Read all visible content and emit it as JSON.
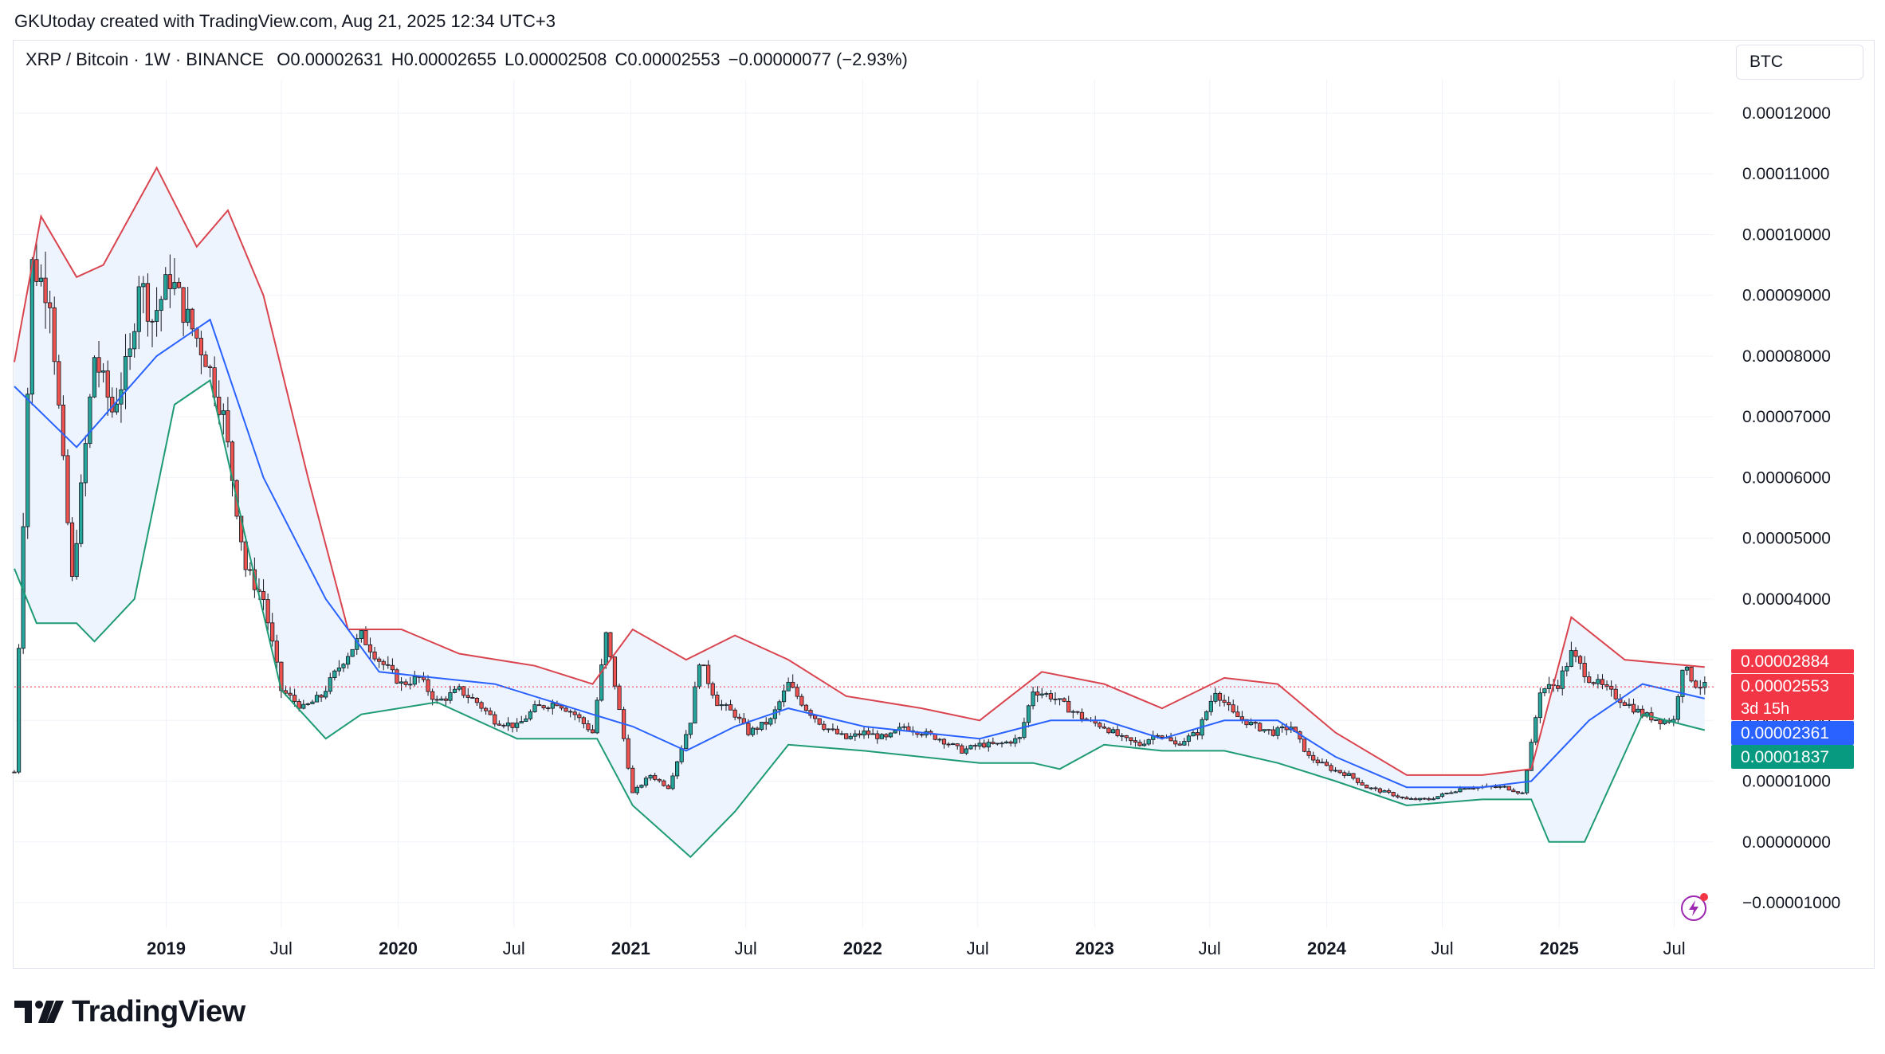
{
  "caption": "GKUtoday created with TradingView.com, Aug 21, 2025 12:34 UTC+3",
  "legend": {
    "symbol": "XRP / Bitcoin · 1W · BINANCE",
    "open": "O0.00002631",
    "high": "H0.00002655",
    "low": "L0.00002508",
    "close": "C0.00002553",
    "change": "−0.00000077 (−2.93%)"
  },
  "currency_button": "BTC",
  "brand": "TradingView",
  "price_tags": {
    "upper": "0.00002884",
    "last": "0.00002553",
    "countdown": "3d 15h",
    "middle": "0.00002361",
    "lower": "0.00001837"
  },
  "colors": {
    "up": "#26a69a",
    "down": "#ef5350",
    "candle": "#131722",
    "upper_band": "#d9444f",
    "middle_band": "#2962ff",
    "lower_band": "#1e9b74",
    "band_fill": "#eef4fd",
    "tag_red": "#f23645",
    "tag_blue": "#2962ff",
    "tag_green": "#089981"
  },
  "chart_data": {
    "type": "candlestick",
    "interval": "1W",
    "indicator": "Bollinger Bands",
    "y_range": [
      -1e-05,
      0.00012
    ],
    "y_ticks": [
      "0.00012000",
      "0.00011000",
      "0.00010000",
      "0.00009000",
      "0.00008000",
      "0.00007000",
      "0.00006000",
      "0.00005000",
      "0.00004000",
      "0.00003000",
      "0.00002000",
      "0.00001000",
      "0.00000000",
      "−0.00001000"
    ],
    "y_tick_values": [
      0.00012,
      0.00011,
      0.0001,
      9e-05,
      8e-05,
      7e-05,
      6e-05,
      5e-05,
      4e-05,
      3e-05,
      2e-05,
      1e-05,
      0,
      -1e-05
    ],
    "x_ticks": [
      {
        "label": "2019",
        "date": "2019-01-01",
        "bold": true
      },
      {
        "label": "Jul",
        "date": "2019-07-01",
        "bold": false
      },
      {
        "label": "2020",
        "date": "2020-01-01",
        "bold": true
      },
      {
        "label": "Jul",
        "date": "2020-07-01",
        "bold": false
      },
      {
        "label": "2021",
        "date": "2021-01-01",
        "bold": true
      },
      {
        "label": "Jul",
        "date": "2021-07-01",
        "bold": false
      },
      {
        "label": "2022",
        "date": "2022-01-01",
        "bold": true
      },
      {
        "label": "Jul",
        "date": "2022-07-01",
        "bold": false
      },
      {
        "label": "2023",
        "date": "2023-01-01",
        "bold": true
      },
      {
        "label": "Jul",
        "date": "2023-07-01",
        "bold": false
      },
      {
        "label": "2024",
        "date": "2024-01-01",
        "bold": true
      },
      {
        "label": "Jul",
        "date": "2024-07-01",
        "bold": false
      },
      {
        "label": "2025",
        "date": "2025-01-01",
        "bold": true
      },
      {
        "label": "Jul",
        "date": "2025-07-01",
        "bold": false
      }
    ],
    "last_price": 2.553e-05,
    "price_series": [
      [
        "2018-05-07",
        1.15e-05
      ],
      [
        "2018-06-04",
        9.5e-05
      ],
      [
        "2018-07-02",
        9e-05
      ],
      [
        "2018-08-06",
        4.3e-05
      ],
      [
        "2018-09-10",
        8e-05
      ],
      [
        "2018-10-08",
        7.1e-05
      ],
      [
        "2018-11-05",
        8e-05
      ],
      [
        "2018-11-19",
        9.3e-05
      ],
      [
        "2018-12-10",
        8.6e-05
      ],
      [
        "2019-01-07",
        9.3e-05
      ],
      [
        "2019-02-04",
        8.6e-05
      ],
      [
        "2019-03-04",
        8e-05
      ],
      [
        "2019-04-01",
        7e-05
      ],
      [
        "2019-05-06",
        4.5e-05
      ],
      [
        "2019-06-03",
        4e-05
      ],
      [
        "2019-07-01",
        2.5e-05
      ],
      [
        "2019-08-05",
        2.2e-05
      ],
      [
        "2019-09-02",
        2.4e-05
      ],
      [
        "2019-10-07",
        3e-05
      ],
      [
        "2019-11-04",
        3.4e-05
      ],
      [
        "2019-12-02",
        3e-05
      ],
      [
        "2020-01-06",
        2.6e-05
      ],
      [
        "2020-02-03",
        2.7e-05
      ],
      [
        "2020-03-02",
        2.3e-05
      ],
      [
        "2020-04-06",
        2.5e-05
      ],
      [
        "2020-05-04",
        2.3e-05
      ],
      [
        "2020-06-01",
        2e-05
      ],
      [
        "2020-07-06",
        1.9e-05
      ],
      [
        "2020-08-03",
        2.2e-05
      ],
      [
        "2020-09-07",
        2.3e-05
      ],
      [
        "2020-10-05",
        2.1e-05
      ],
      [
        "2020-11-02",
        1.8e-05
      ],
      [
        "2020-11-23",
        3.4e-05
      ],
      [
        "2020-12-07",
        2.6e-05
      ],
      [
        "2021-01-04",
        8e-06
      ],
      [
        "2021-02-01",
        1.1e-05
      ],
      [
        "2021-03-01",
        9e-06
      ],
      [
        "2021-04-05",
        2e-05
      ],
      [
        "2021-04-19",
        3e-05
      ],
      [
        "2021-05-17",
        2.3e-05
      ],
      [
        "2021-06-14",
        2.1e-05
      ],
      [
        "2021-07-05",
        1.8e-05
      ],
      [
        "2021-08-09",
        2e-05
      ],
      [
        "2021-09-06",
        2.6e-05
      ],
      [
        "2021-10-04",
        2.2e-05
      ],
      [
        "2021-11-01",
        1.9e-05
      ],
      [
        "2021-12-06",
        1.7e-05
      ],
      [
        "2022-01-03",
        1.8e-05
      ],
      [
        "2022-02-07",
        1.7e-05
      ],
      [
        "2022-03-07",
        1.9e-05
      ],
      [
        "2022-04-04",
        1.8e-05
      ],
      [
        "2022-05-02",
        1.7e-05
      ],
      [
        "2022-06-06",
        1.5e-05
      ],
      [
        "2022-07-04",
        1.6e-05
      ],
      [
        "2022-08-01",
        1.6e-05
      ],
      [
        "2022-09-05",
        1.7e-05
      ],
      [
        "2022-09-26",
        2.5e-05
      ],
      [
        "2022-10-24",
        2.4e-05
      ],
      [
        "2022-11-21",
        2.2e-05
      ],
      [
        "2022-12-19",
        2e-05
      ],
      [
        "2023-01-16",
        1.9e-05
      ],
      [
        "2023-02-13",
        1.7e-05
      ],
      [
        "2023-03-13",
        1.6e-05
      ],
      [
        "2023-04-10",
        1.8e-05
      ],
      [
        "2023-05-08",
        1.6e-05
      ],
      [
        "2023-06-12",
        1.8e-05
      ],
      [
        "2023-07-10",
        2.5e-05
      ],
      [
        "2023-08-07",
        2.1e-05
      ],
      [
        "2023-09-11",
        1.9e-05
      ],
      [
        "2023-10-09",
        1.8e-05
      ],
      [
        "2023-11-06",
        1.9e-05
      ],
      [
        "2023-12-04",
        1.4e-05
      ],
      [
        "2024-01-08",
        1.2e-05
      ],
      [
        "2024-02-05",
        1.1e-05
      ],
      [
        "2024-03-04",
        9e-06
      ],
      [
        "2024-04-08",
        8e-06
      ],
      [
        "2024-05-06",
        7e-06
      ],
      [
        "2024-06-10",
        7e-06
      ],
      [
        "2024-07-08",
        8e-06
      ],
      [
        "2024-08-05",
        9e-06
      ],
      [
        "2024-09-09",
        9e-06
      ],
      [
        "2024-10-07",
        9e-06
      ],
      [
        "2024-11-04",
        8e-06
      ],
      [
        "2024-11-18",
        1.6e-05
      ],
      [
        "2024-12-02",
        2.5e-05
      ],
      [
        "2024-12-30",
        2.6e-05
      ],
      [
        "2025-01-20",
        3.1e-05
      ],
      [
        "2025-02-17",
        2.7e-05
      ],
      [
        "2025-03-17",
        2.5e-05
      ],
      [
        "2025-04-14",
        2.3e-05
      ],
      [
        "2025-05-12",
        2.1e-05
      ],
      [
        "2025-06-09",
        2e-05
      ],
      [
        "2025-06-30",
        2e-05
      ],
      [
        "2025-07-14",
        2.9e-05
      ],
      [
        "2025-08-04",
        2.6e-05
      ],
      [
        "2025-08-18",
        2.553e-05
      ]
    ],
    "bollinger": {
      "upper": [
        [
          "2018-05-07",
          7.9e-05
        ],
        [
          "2018-06-18",
          0.000103
        ],
        [
          "2018-08-13",
          9.3e-05
        ],
        [
          "2018-09-24",
          9.5e-05
        ],
        [
          "2018-12-17",
          0.000111
        ],
        [
          "2019-02-18",
          9.8e-05
        ],
        [
          "2019-04-08",
          0.000104
        ],
        [
          "2019-06-03",
          9e-05
        ],
        [
          "2019-08-12",
          6e-05
        ],
        [
          "2019-10-14",
          3.5e-05
        ],
        [
          "2020-01-06",
          3.5e-05
        ],
        [
          "2020-04-06",
          3.1e-05
        ],
        [
          "2020-08-03",
          2.9e-05
        ],
        [
          "2020-11-02",
          2.6e-05
        ],
        [
          "2021-01-04",
          3.5e-05
        ],
        [
          "2021-03-29",
          3e-05
        ],
        [
          "2021-06-14",
          3.4e-05
        ],
        [
          "2021-09-06",
          3e-05
        ],
        [
          "2021-12-06",
          2.4e-05
        ],
        [
          "2022-04-04",
          2.2e-05
        ],
        [
          "2022-07-04",
          2e-05
        ],
        [
          "2022-10-10",
          2.8e-05
        ],
        [
          "2023-01-16",
          2.6e-05
        ],
        [
          "2023-04-17",
          2.2e-05
        ],
        [
          "2023-07-24",
          2.7e-05
        ],
        [
          "2023-10-16",
          2.6e-05
        ],
        [
          "2024-01-15",
          1.8e-05
        ],
        [
          "2024-05-06",
          1.1e-05
        ],
        [
          "2024-09-02",
          1.1e-05
        ],
        [
          "2024-11-18",
          1.2e-05
        ],
        [
          "2025-01-20",
          3.7e-05
        ],
        [
          "2025-04-14",
          3e-05
        ],
        [
          "2025-08-18",
          2.88e-05
        ]
      ],
      "middle": [
        [
          "2018-05-07",
          7.5e-05
        ],
        [
          "2018-08-13",
          6.5e-05
        ],
        [
          "2018-12-17",
          8e-05
        ],
        [
          "2019-03-11",
          8.6e-05
        ],
        [
          "2019-06-03",
          6e-05
        ],
        [
          "2019-09-09",
          4e-05
        ],
        [
          "2019-12-02",
          2.8e-05
        ],
        [
          "2020-06-01",
          2.6e-05
        ],
        [
          "2020-11-02",
          2.1e-05
        ],
        [
          "2021-01-04",
          1.9e-05
        ],
        [
          "2021-03-29",
          1.5e-05
        ],
        [
          "2021-06-14",
          1.9e-05
        ],
        [
          "2021-09-06",
          2.2e-05
        ],
        [
          "2022-01-03",
          1.9e-05
        ],
        [
          "2022-07-04",
          1.7e-05
        ],
        [
          "2022-10-24",
          2e-05
        ],
        [
          "2023-01-16",
          2e-05
        ],
        [
          "2023-04-17",
          1.7e-05
        ],
        [
          "2023-07-24",
          2e-05
        ],
        [
          "2023-10-16",
          2e-05
        ],
        [
          "2024-01-15",
          1.4e-05
        ],
        [
          "2024-05-06",
          9e-06
        ],
        [
          "2024-09-02",
          9e-06
        ],
        [
          "2024-11-18",
          1e-05
        ],
        [
          "2025-02-17",
          2e-05
        ],
        [
          "2025-05-12",
          2.6e-05
        ],
        [
          "2025-08-18",
          2.36e-05
        ]
      ],
      "lower": [
        [
          "2018-05-07",
          4.5e-05
        ],
        [
          "2018-06-11",
          3.6e-05
        ],
        [
          "2018-08-13",
          3.6e-05
        ],
        [
          "2018-09-10",
          3.3e-05
        ],
        [
          "2018-11-12",
          4e-05
        ],
        [
          "2019-01-14",
          7.2e-05
        ],
        [
          "2019-03-11",
          7.6e-05
        ],
        [
          "2019-05-06",
          5e-05
        ],
        [
          "2019-07-01",
          2.5e-05
        ],
        [
          "2019-09-09",
          1.7e-05
        ],
        [
          "2019-11-04",
          2.1e-05
        ],
        [
          "2020-03-02",
          2.3e-05
        ],
        [
          "2020-07-06",
          1.7e-05
        ],
        [
          "2020-11-09",
          1.7e-05
        ],
        [
          "2021-01-04",
          6e-06
        ],
        [
          "2021-04-05",
          -2.5e-06
        ],
        [
          "2021-06-14",
          5e-06
        ],
        [
          "2021-09-06",
          1.6e-05
        ],
        [
          "2022-01-03",
          1.5e-05
        ],
        [
          "2022-07-04",
          1.3e-05
        ],
        [
          "2022-09-26",
          1.3e-05
        ],
        [
          "2022-11-07",
          1.2e-05
        ],
        [
          "2023-01-16",
          1.6e-05
        ],
        [
          "2023-04-17",
          1.5e-05
        ],
        [
          "2023-07-24",
          1.5e-05
        ],
        [
          "2023-10-16",
          1.3e-05
        ],
        [
          "2024-01-15",
          1e-05
        ],
        [
          "2024-05-06",
          6e-06
        ],
        [
          "2024-09-02",
          7e-06
        ],
        [
          "2024-11-18",
          7e-06
        ],
        [
          "2024-12-16",
          0.0
        ],
        [
          "2025-02-10",
          0.0
        ],
        [
          "2025-05-12",
          2.1e-05
        ],
        [
          "2025-08-18",
          1.84e-05
        ]
      ]
    }
  }
}
